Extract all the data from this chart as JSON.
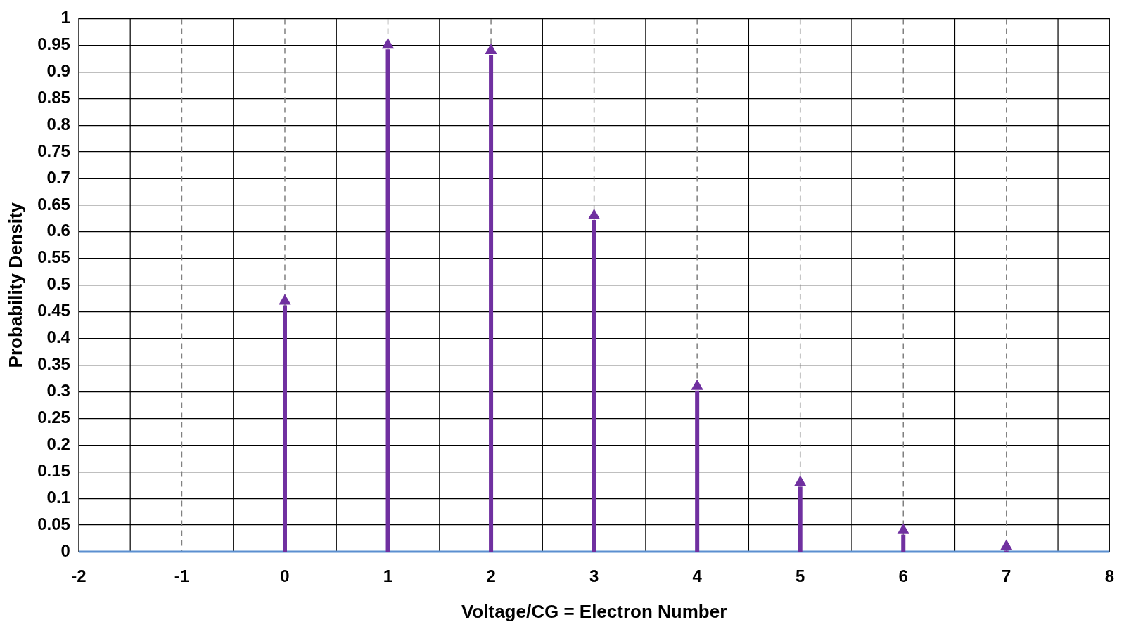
{
  "chart_data": {
    "type": "lollipop",
    "xlabel": "Voltage/CG = Electron Number",
    "ylabel": "Probability Density",
    "x": [
      0,
      1,
      2,
      3,
      4,
      5,
      6,
      7
    ],
    "values": [
      0.47,
      0.95,
      0.94,
      0.63,
      0.31,
      0.13,
      0.04,
      0.01
    ],
    "color": "#7030a0",
    "marker": "triangle",
    "grid": true,
    "xlim": [
      -2,
      8
    ],
    "xticks": [
      -2,
      {
        "value": -1.5,
        "label": null
      },
      -1,
      {
        "value": -0.5,
        "label": null
      },
      0,
      {
        "value": 0.5,
        "label": null
      },
      1,
      {
        "value": 1.5,
        "label": null
      },
      2,
      {
        "value": 2.5,
        "label": null
      },
      3,
      {
        "value": 3.5,
        "label": null
      },
      4,
      {
        "value": 4.5,
        "label": null
      },
      5,
      {
        "value": 5.5,
        "label": null
      },
      6,
      {
        "value": 6.5,
        "label": null
      },
      7,
      {
        "value": 7.5,
        "label": null
      },
      8
    ],
    "ylim": [
      0,
      1
    ],
    "yticks": [
      0,
      0.05,
      0.1,
      0.15,
      0.2,
      0.25,
      0.3,
      0.35,
      0.4,
      0.45,
      0.5,
      0.55,
      0.6,
      0.65,
      0.7,
      0.75,
      0.8,
      0.85,
      0.9,
      0.95,
      1
    ]
  }
}
